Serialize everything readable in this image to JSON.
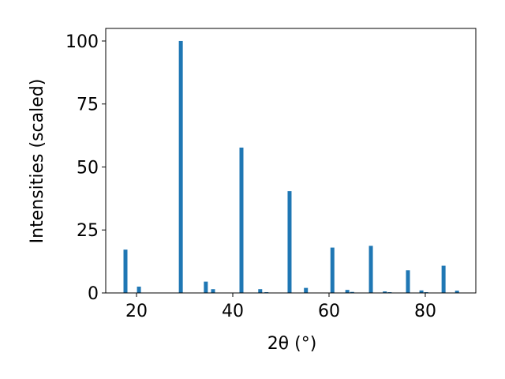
{
  "chart_data": {
    "type": "bar",
    "x": [
      17.7,
      20.5,
      29.2,
      34.4,
      35.9,
      41.8,
      45.7,
      47.0,
      51.8,
      55.2,
      60.7,
      63.8,
      64.8,
      68.7,
      71.6,
      72.6,
      76.4,
      79.2,
      80.2,
      83.8,
      86.6
    ],
    "values": [
      17.2,
      2.5,
      100,
      4.5,
      1.5,
      57.7,
      1.5,
      0.3,
      40.4,
      2.0,
      18.0,
      1.2,
      0.4,
      18.7,
      0.6,
      0.3,
      9.0,
      1.0,
      0.3,
      10.8,
      0.9
    ],
    "color": "#1f77b4",
    "xlabel": "2θ (°)",
    "ylabel": "Intensities (scaled)",
    "xlim": [
      13.6,
      90.5
    ],
    "ylim": [
      0,
      105
    ],
    "xticks": [
      20,
      40,
      60,
      80
    ],
    "yticks": [
      0,
      25,
      50,
      75,
      100
    ],
    "grid": false
  }
}
